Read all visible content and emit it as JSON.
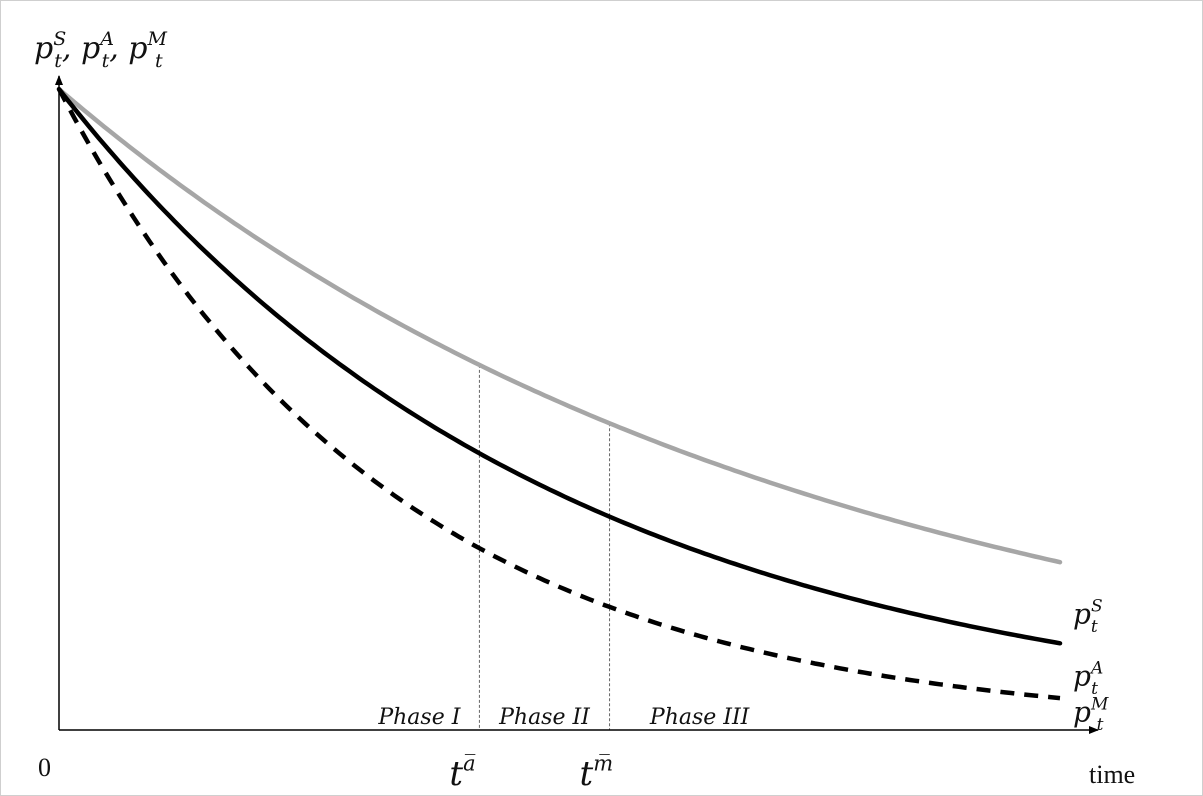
{
  "chart_data": {
    "type": "line",
    "ylabel": {
      "parts": [
        {
          "base": "p",
          "sub": "t",
          "sup": "S",
          "sep": ","
        },
        {
          "base": "p",
          "sub": "t",
          "sup": "A",
          "sep": ","
        },
        {
          "base": "p",
          "sub": "t",
          "sup": "M",
          "sep": ""
        }
      ]
    },
    "xlabel": "time",
    "origin_label": "0",
    "xlim": [
      0,
      10
    ],
    "ylim": [
      0,
      1
    ],
    "series": [
      {
        "name_base": "p",
        "name_sub": "t",
        "name_sup": "S",
        "color": "#a6a6a6",
        "dash": "solid",
        "p0": 0.98,
        "r": 0.134,
        "y_end": 0.16
      },
      {
        "name_base": "p",
        "name_sub": "t",
        "name_sup": "A",
        "color": "#000000",
        "dash": "solid",
        "p0": 0.98,
        "r": 0.2,
        "y_end": 0.065
      },
      {
        "name_base": "p",
        "name_sub": "t",
        "name_sup": "M",
        "color": "#000000",
        "dash": "dashed",
        "p0": 0.98,
        "r": 0.3,
        "y_end": 0.01
      }
    ],
    "markers": [
      {
        "x": 4.2,
        "base": "t",
        "sup": "a̅"
      },
      {
        "x": 5.5,
        "base": "t",
        "sup": "m̅"
      }
    ],
    "phases": [
      {
        "label": "Phase I",
        "x_center": 3.6
      },
      {
        "label": "Phase II",
        "x_center": 4.85
      },
      {
        "label": "Phase III",
        "x_center": 6.4
      }
    ]
  }
}
